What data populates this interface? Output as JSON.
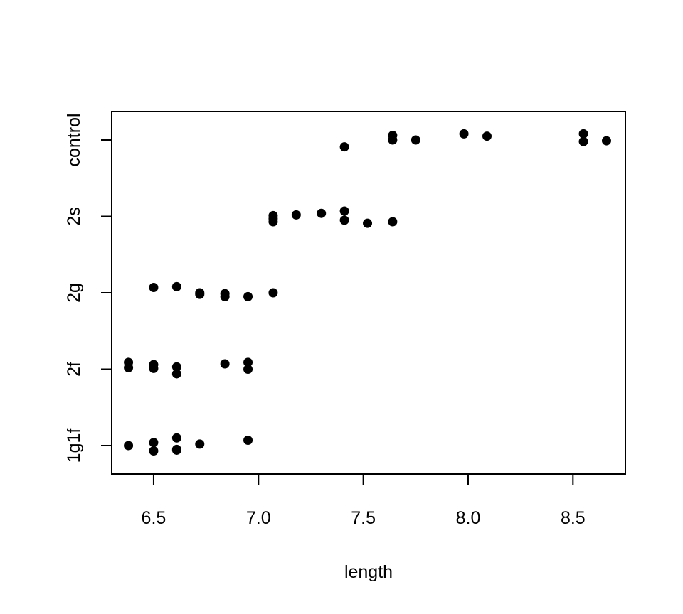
{
  "chart_data": {
    "type": "scatter",
    "title": "",
    "xlabel": "length",
    "ylabel": "",
    "xlim": [
      6.3,
      8.75
    ],
    "x_ticks": [
      6.5,
      7.0,
      7.5,
      8.0,
      8.5
    ],
    "x_tick_labels": [
      "6.5",
      "7.0",
      "7.5",
      "8.0",
      "8.5"
    ],
    "categories": [
      "1g1f",
      "2f",
      "2g",
      "2s",
      "control"
    ],
    "grid": false,
    "color": "#000000",
    "series": [
      {
        "points": [
          {
            "x": 6.38,
            "y": "1g1f",
            "jitter": 0.0
          },
          {
            "x": 6.5,
            "y": "1g1f",
            "jitter": 0.04
          },
          {
            "x": 6.5,
            "y": "1g1f",
            "jitter": -0.07
          },
          {
            "x": 6.61,
            "y": "1g1f",
            "jitter": 0.1
          },
          {
            "x": 6.61,
            "y": "1g1f",
            "jitter": -0.05
          },
          {
            "x": 6.61,
            "y": "1g1f",
            "jitter": -0.06
          },
          {
            "x": 6.72,
            "y": "1g1f",
            "jitter": 0.02
          },
          {
            "x": 6.95,
            "y": "1g1f",
            "jitter": 0.07
          },
          {
            "x": 6.38,
            "y": "2f",
            "jitter": 0.09
          },
          {
            "x": 6.38,
            "y": "2f",
            "jitter": 0.02
          },
          {
            "x": 6.5,
            "y": "2f",
            "jitter": 0.06
          },
          {
            "x": 6.5,
            "y": "2f",
            "jitter": 0.01
          },
          {
            "x": 6.61,
            "y": "2f",
            "jitter": 0.03
          },
          {
            "x": 6.61,
            "y": "2f",
            "jitter": -0.06
          },
          {
            "x": 6.84,
            "y": "2f",
            "jitter": 0.07
          },
          {
            "x": 6.95,
            "y": "2f",
            "jitter": 0.09
          },
          {
            "x": 6.95,
            "y": "2f",
            "jitter": 0.0
          },
          {
            "x": 6.5,
            "y": "2g",
            "jitter": 0.07
          },
          {
            "x": 6.61,
            "y": "2g",
            "jitter": 0.08
          },
          {
            "x": 6.72,
            "y": "2g",
            "jitter": 0.0
          },
          {
            "x": 6.72,
            "y": "2g",
            "jitter": -0.02
          },
          {
            "x": 6.84,
            "y": "2g",
            "jitter": -0.01
          },
          {
            "x": 6.84,
            "y": "2g",
            "jitter": -0.05
          },
          {
            "x": 6.95,
            "y": "2g",
            "jitter": -0.05
          },
          {
            "x": 7.07,
            "y": "2g",
            "jitter": 0.0
          },
          {
            "x": 7.07,
            "y": "2s",
            "jitter": 0.01
          },
          {
            "x": 7.07,
            "y": "2s",
            "jitter": -0.03
          },
          {
            "x": 7.07,
            "y": "2s",
            "jitter": -0.07
          },
          {
            "x": 7.18,
            "y": "2s",
            "jitter": 0.02
          },
          {
            "x": 7.3,
            "y": "2s",
            "jitter": 0.04
          },
          {
            "x": 7.41,
            "y": "2s",
            "jitter": 0.07
          },
          {
            "x": 7.41,
            "y": "2s",
            "jitter": -0.05
          },
          {
            "x": 7.52,
            "y": "2s",
            "jitter": -0.09
          },
          {
            "x": 7.64,
            "y": "2s",
            "jitter": -0.07
          },
          {
            "x": 7.41,
            "y": "control",
            "jitter": -0.09
          },
          {
            "x": 7.64,
            "y": "control",
            "jitter": 0.06
          },
          {
            "x": 7.64,
            "y": "control",
            "jitter": 0.0
          },
          {
            "x": 7.75,
            "y": "control",
            "jitter": 0.0
          },
          {
            "x": 7.98,
            "y": "control",
            "jitter": 0.08
          },
          {
            "x": 8.09,
            "y": "control",
            "jitter": 0.05
          },
          {
            "x": 8.55,
            "y": "control",
            "jitter": 0.08
          },
          {
            "x": 8.55,
            "y": "control",
            "jitter": -0.02
          },
          {
            "x": 8.66,
            "y": "control",
            "jitter": -0.01
          }
        ]
      }
    ]
  }
}
